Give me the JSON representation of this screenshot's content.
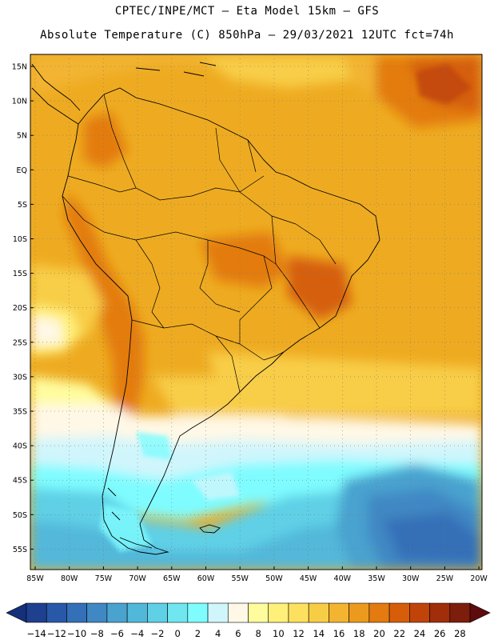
{
  "header": {
    "line1": "CPTEC/INPE/MCT –  Eta Model 15km – GFS",
    "line2": "Absolute Temperature (C) 850hPa – 29/03/2021 12UTC fct=74h"
  },
  "map": {
    "lat_labels": [
      "15N",
      "10N",
      "5N",
      "EQ",
      "5S",
      "10S",
      "15S",
      "20S",
      "25S",
      "30S",
      "35S",
      "40S",
      "45S",
      "50S",
      "55S"
    ],
    "lon_labels": [
      "85W",
      "80W",
      "75W",
      "70W",
      "65W",
      "60W",
      "55W",
      "50W",
      "45W",
      "40W",
      "35W",
      "30W",
      "25W",
      "20W"
    ],
    "gridlines": "dotted",
    "region": "South America"
  },
  "colorbar": {
    "tick_labels": [
      "-14",
      "-12",
      "-10",
      "-8",
      "-6",
      "-4",
      "-2",
      "0",
      "2",
      "4",
      "6",
      "8",
      "10",
      "12",
      "14",
      "16",
      "18",
      "20",
      "22",
      "24",
      "26",
      "28"
    ],
    "colors": [
      "#1f3f8f",
      "#2a58a8",
      "#3470b7",
      "#3f88c4",
      "#4aa2cf",
      "#52b8da",
      "#5fd0e6",
      "#6fe6f0",
      "#7ffcff",
      "#d0f6fc",
      "#fff8e6",
      "#fffc9e",
      "#fff07a",
      "#fde15e",
      "#f8cd46",
      "#f2b431",
      "#ec9a1e",
      "#e37b10",
      "#d65e0a",
      "#c04409",
      "#a02e0a",
      "#7d1d0b"
    ],
    "left_arrow_color": "#14307a",
    "right_arrow_color": "#5e0b0e"
  }
}
